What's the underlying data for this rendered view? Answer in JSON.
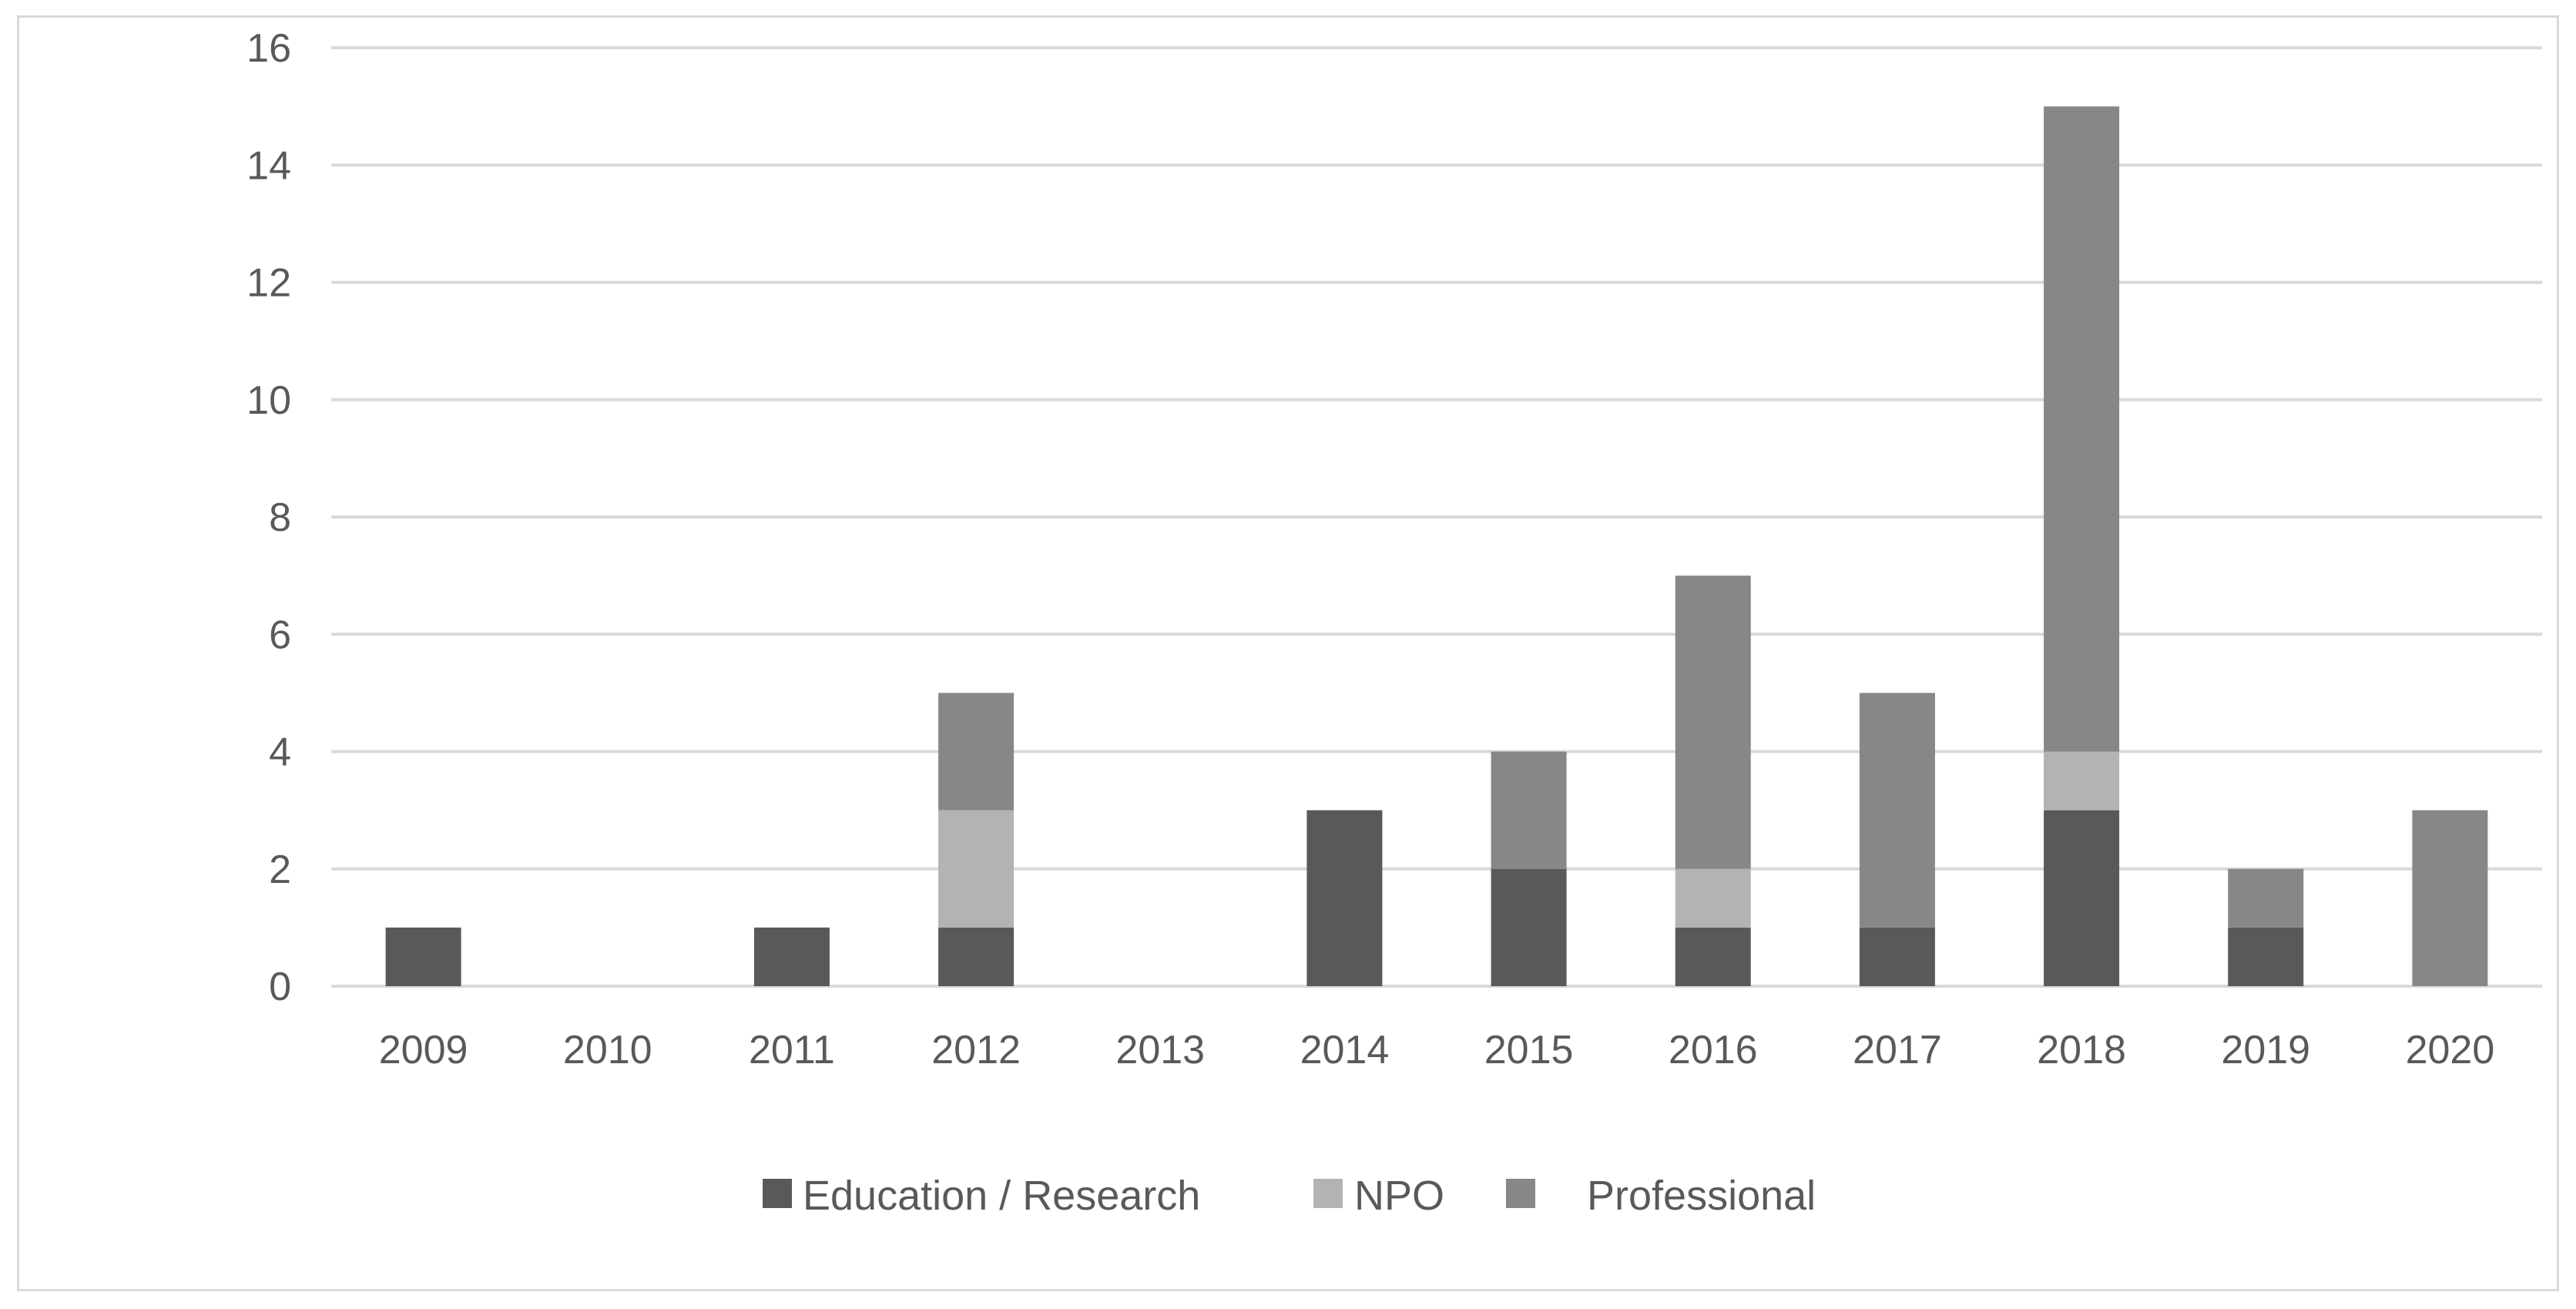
{
  "chart_data": {
    "type": "bar",
    "stacked": true,
    "title": "",
    "xlabel": "",
    "ylabel": "",
    "ylim": [
      0,
      16
    ],
    "yticks": [
      0,
      2,
      4,
      6,
      8,
      10,
      12,
      14,
      16
    ],
    "grid": true,
    "legend_position": "bottom",
    "categories": [
      "2009",
      "2010",
      "2011",
      "2012",
      "2013",
      "2014",
      "2015",
      "2016",
      "2017",
      "2018",
      "2019",
      "2020"
    ],
    "series": [
      {
        "name": "Education / Research",
        "color": "#595959",
        "values": [
          1,
          0,
          1,
          1,
          0,
          3,
          2,
          1,
          1,
          3,
          1,
          0
        ]
      },
      {
        "name": "NPO",
        "color": "#b3b3b3",
        "values": [
          0,
          0,
          0,
          2,
          0,
          0,
          0,
          1,
          0,
          1,
          0,
          0
        ]
      },
      {
        "name": "Professional",
        "color": "#878787",
        "values": [
          0,
          0,
          0,
          2,
          0,
          0,
          2,
          5,
          4,
          11,
          1,
          3
        ]
      }
    ]
  }
}
